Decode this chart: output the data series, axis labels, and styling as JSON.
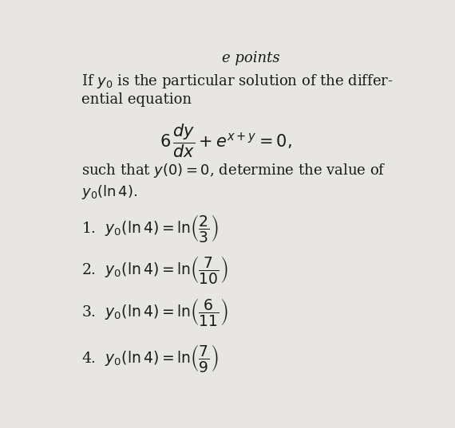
{
  "bg_color": "#e8e6e2",
  "text_color": "#1a1a1a",
  "figsize": [
    5.7,
    5.37
  ],
  "dpi": 100,
  "top_partial": "e points",
  "title_line1": "If $y_0$ is the particular solution of the differ-",
  "title_line2": "ential equation",
  "equation": "$6\\,\\dfrac{dy}{dx} + e^{x+y} = 0,$",
  "condition_line1": "such that $y(0) = 0$, determine the value of",
  "condition_line2": "$y_0(\\ln 4)$.",
  "option1": "1.  $y_0(\\ln 4) = \\ln\\!\\left(\\dfrac{2}{3}\\right)$",
  "option2": "2.  $y_0(\\ln 4) = \\ln\\!\\left(\\dfrac{7}{10}\\right)$",
  "option3": "3.  $y_0(\\ln 4) = \\ln\\!\\left(\\dfrac{6}{11}\\right)$",
  "option4": "4.  $y_0(\\ln 4) = \\ln\\!\\left(\\dfrac{7}{9}\\right)$"
}
